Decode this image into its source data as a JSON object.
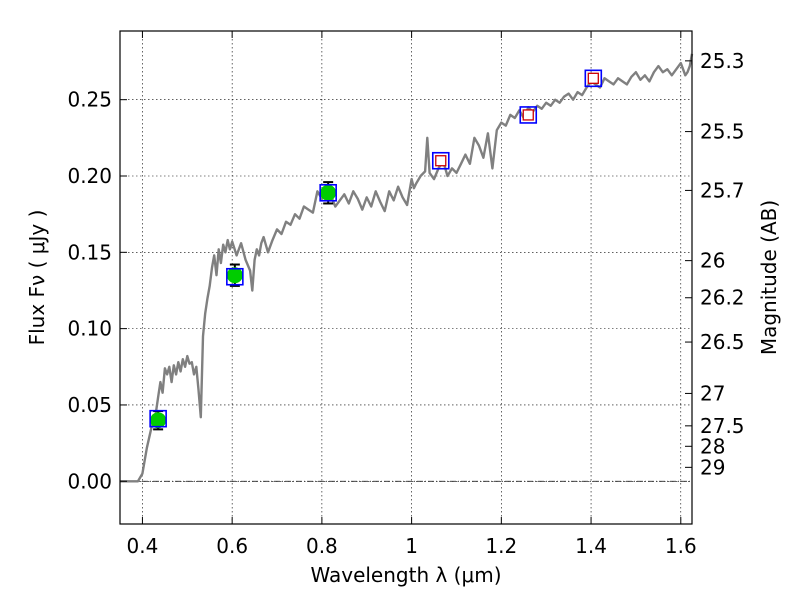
{
  "chart_data": {
    "type": "line",
    "xlabel": "Wavelength  λ (μm)",
    "ylabel": "Flux  Fν  ( μJy )",
    "ylabel_right": "Magnitude (AB)",
    "xlim": [
      0.35,
      1.625
    ],
    "ylim": [
      -0.028,
      0.295
    ],
    "grid": true,
    "x_ticks": [
      {
        "value": 0.4,
        "label": "0.4"
      },
      {
        "value": 0.6,
        "label": "0.6"
      },
      {
        "value": 0.8,
        "label": "0.8"
      },
      {
        "value": 1.0,
        "label": "1"
      },
      {
        "value": 1.2,
        "label": "1.2"
      },
      {
        "value": 1.4,
        "label": "1.4"
      },
      {
        "value": 1.6,
        "label": "1.6"
      }
    ],
    "y_ticks": [
      {
        "value": 0.0,
        "label": "0.00"
      },
      {
        "value": 0.05,
        "label": "0.05"
      },
      {
        "value": 0.1,
        "label": "0.10"
      },
      {
        "value": 0.15,
        "label": "0.15"
      },
      {
        "value": 0.2,
        "label": "0.20"
      },
      {
        "value": 0.25,
        "label": "0.25"
      }
    ],
    "magnitude_ticks": [
      {
        "value": 25.3,
        "label": "25.3"
      },
      {
        "value": 25.5,
        "label": "25.5"
      },
      {
        "value": 25.7,
        "label": "25.7"
      },
      {
        "value": 26.0,
        "label": "26"
      },
      {
        "value": 26.2,
        "label": "26.2"
      },
      {
        "value": 26.5,
        "label": "26.5"
      },
      {
        "value": 27.0,
        "label": "27"
      },
      {
        "value": 27.5,
        "label": "27.5"
      },
      {
        "value": 28.0,
        "label": "28"
      },
      {
        "value": 29.0,
        "label": "29"
      }
    ],
    "series": [
      {
        "kind": "model-spectrum",
        "color": "#808080",
        "x": [
          0.35,
          0.39,
          0.4,
          0.41,
          0.42,
          0.43,
          0.435,
          0.44,
          0.445,
          0.45,
          0.455,
          0.46,
          0.465,
          0.47,
          0.475,
          0.48,
          0.485,
          0.49,
          0.495,
          0.5,
          0.505,
          0.51,
          0.515,
          0.52,
          0.525,
          0.53,
          0.535,
          0.54,
          0.545,
          0.55,
          0.555,
          0.56,
          0.565,
          0.57,
          0.575,
          0.58,
          0.585,
          0.59,
          0.595,
          0.6,
          0.61,
          0.62,
          0.63,
          0.64,
          0.645,
          0.65,
          0.655,
          0.66,
          0.665,
          0.67,
          0.675,
          0.68,
          0.69,
          0.7,
          0.71,
          0.72,
          0.73,
          0.74,
          0.75,
          0.76,
          0.77,
          0.78,
          0.79,
          0.8,
          0.81,
          0.82,
          0.83,
          0.84,
          0.85,
          0.86,
          0.87,
          0.88,
          0.89,
          0.9,
          0.91,
          0.92,
          0.93,
          0.94,
          0.95,
          0.96,
          0.97,
          0.98,
          0.99,
          1.0,
          1.005,
          1.01,
          1.02,
          1.03,
          1.035,
          1.04,
          1.05,
          1.06,
          1.07,
          1.08,
          1.09,
          1.1,
          1.11,
          1.12,
          1.13,
          1.14,
          1.15,
          1.16,
          1.17,
          1.18,
          1.19,
          1.2,
          1.21,
          1.22,
          1.23,
          1.24,
          1.25,
          1.26,
          1.27,
          1.28,
          1.29,
          1.3,
          1.31,
          1.32,
          1.33,
          1.34,
          1.35,
          1.36,
          1.37,
          1.38,
          1.39,
          1.4,
          1.41,
          1.42,
          1.43,
          1.44,
          1.45,
          1.46,
          1.47,
          1.48,
          1.49,
          1.5,
          1.51,
          1.52,
          1.53,
          1.54,
          1.55,
          1.56,
          1.57,
          1.58,
          1.59,
          1.6,
          1.61,
          1.615,
          1.62,
          1.625
        ],
        "y": [
          0.0,
          0.0,
          0.005,
          0.022,
          0.035,
          0.045,
          0.055,
          0.065,
          0.058,
          0.074,
          0.07,
          0.075,
          0.065,
          0.076,
          0.07,
          0.078,
          0.072,
          0.08,
          0.075,
          0.082,
          0.077,
          0.078,
          0.07,
          0.075,
          0.06,
          0.042,
          0.095,
          0.11,
          0.12,
          0.128,
          0.14,
          0.148,
          0.135,
          0.152,
          0.143,
          0.155,
          0.15,
          0.158,
          0.152,
          0.157,
          0.148,
          0.156,
          0.145,
          0.138,
          0.125,
          0.145,
          0.152,
          0.148,
          0.156,
          0.16,
          0.155,
          0.15,
          0.158,
          0.165,
          0.162,
          0.17,
          0.168,
          0.175,
          0.172,
          0.18,
          0.178,
          0.176,
          0.19,
          0.185,
          0.193,
          0.187,
          0.18,
          0.184,
          0.188,
          0.182,
          0.19,
          0.185,
          0.178,
          0.186,
          0.18,
          0.19,
          0.183,
          0.177,
          0.19,
          0.184,
          0.193,
          0.186,
          0.181,
          0.198,
          0.192,
          0.195,
          0.2,
          0.203,
          0.225,
          0.202,
          0.198,
          0.205,
          0.21,
          0.2,
          0.205,
          0.202,
          0.208,
          0.214,
          0.208,
          0.225,
          0.22,
          0.212,
          0.228,
          0.205,
          0.23,
          0.235,
          0.233,
          0.24,
          0.238,
          0.243,
          0.238,
          0.245,
          0.242,
          0.246,
          0.244,
          0.248,
          0.246,
          0.25,
          0.248,
          0.252,
          0.254,
          0.25,
          0.255,
          0.253,
          0.258,
          0.262,
          0.26,
          0.258,
          0.264,
          0.262,
          0.26,
          0.264,
          0.262,
          0.26,
          0.265,
          0.268,
          0.263,
          0.266,
          0.262,
          0.268,
          0.272,
          0.268,
          0.27,
          0.266,
          0.27,
          0.274,
          0.266,
          0.268,
          0.272,
          0.28
        ]
      },
      {
        "kind": "photometry-green",
        "marker_color": "#00cc00",
        "points": [
          {
            "x": 0.435,
            "y": 0.04,
            "err": 0.006
          },
          {
            "x": 0.606,
            "y": 0.135,
            "err": 0.007
          },
          {
            "x": 0.814,
            "y": 0.189,
            "err": 0.007
          }
        ]
      },
      {
        "kind": "photometry-model-boxes",
        "box_color": "#0000ff",
        "points": [
          {
            "x": 0.435,
            "y": 0.041
          },
          {
            "x": 0.606,
            "y": 0.134
          },
          {
            "x": 0.814,
            "y": 0.189
          },
          {
            "x": 1.065,
            "y": 0.21
          },
          {
            "x": 1.26,
            "y": 0.24
          },
          {
            "x": 1.405,
            "y": 0.264
          }
        ]
      },
      {
        "kind": "photometry-red",
        "marker_color": "#cc0000",
        "points": [
          {
            "x": 1.065,
            "y": 0.21
          },
          {
            "x": 1.26,
            "y": 0.24
          },
          {
            "x": 1.405,
            "y": 0.264
          }
        ]
      }
    ]
  }
}
